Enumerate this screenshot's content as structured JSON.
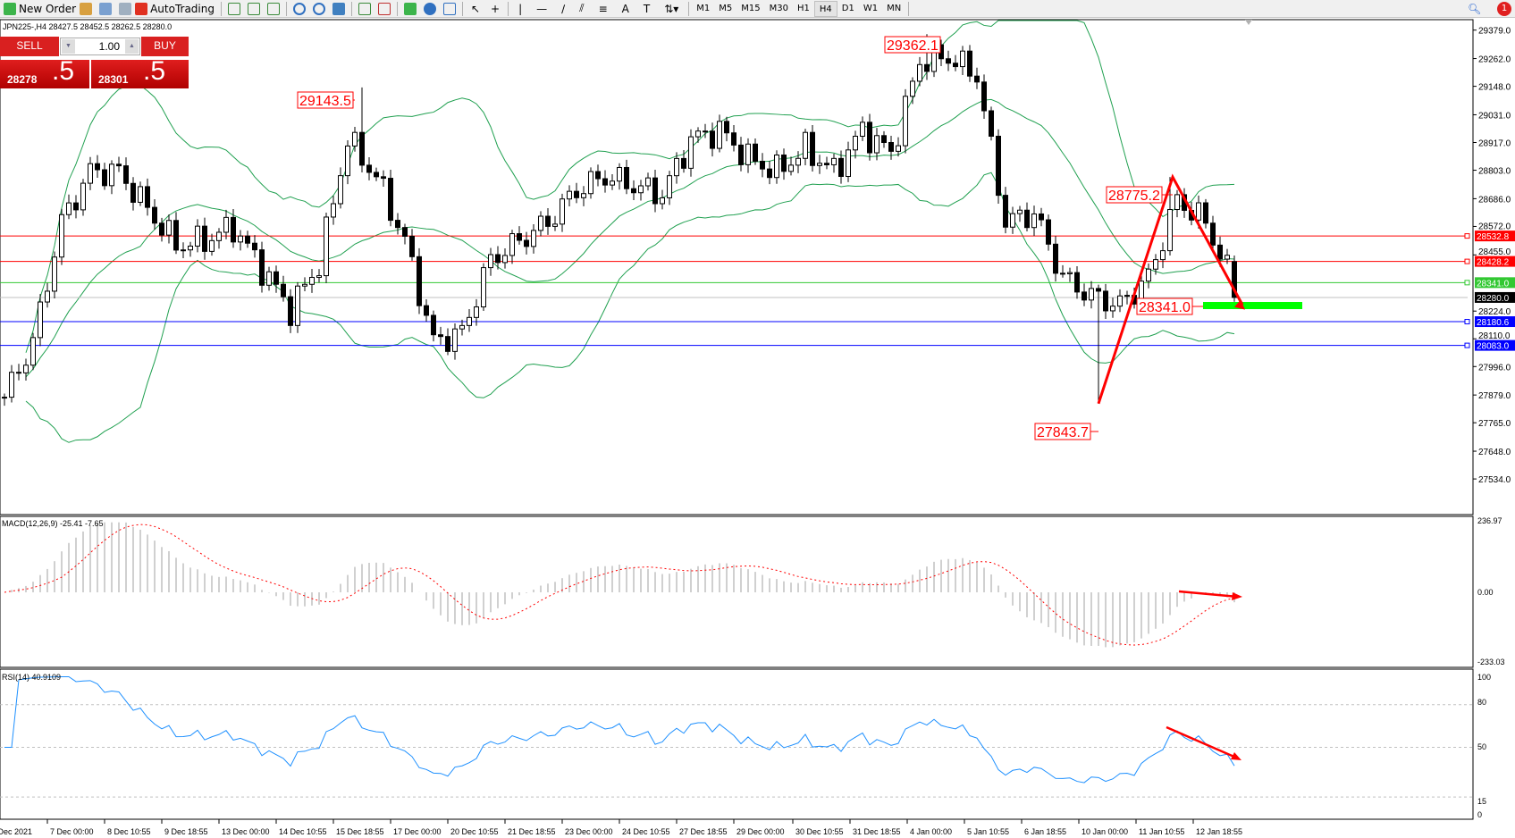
{
  "toolbar": {
    "new_order": "New Order",
    "autotrading": "AutoTrading",
    "timeframes": [
      "M1",
      "M5",
      "M15",
      "M30",
      "H1",
      "H4",
      "D1",
      "W1",
      "MN"
    ],
    "active_timeframe": "H4",
    "notification_count": "1"
  },
  "chart_title": "JPN225-,H4  28427.5 28452.5 28262.5 28280.0",
  "trade_panel": {
    "sell_label": "SELL",
    "buy_label": "BUY",
    "lot": "1.00",
    "sell_small": "28278",
    "sell_big": ".5",
    "buy_small": "28301",
    "buy_big": ".5",
    "color": "#d92020"
  },
  "price_axis": {
    "ticks": [
      "29379.0",
      "29262.0",
      "29148.0",
      "29031.0",
      "28917.0",
      "28803.0",
      "28686.0",
      "28572.0",
      "28455.0",
      "28224.0",
      "28110.0",
      "27996.0",
      "27879.0",
      "27765.0",
      "27648.0",
      "27534.0"
    ]
  },
  "levels": [
    {
      "price": "28532.8",
      "color": "#ff0000"
    },
    {
      "price": "28428.2",
      "color": "#ff0000"
    },
    {
      "price": "28341.0",
      "color": "#32c832"
    },
    {
      "price": "28280.0",
      "color": "#000000",
      "line": "#c0c0c0"
    },
    {
      "price": "28180.6",
      "color": "#0000ff"
    },
    {
      "price": "28083.0",
      "color": "#0000ff"
    }
  ],
  "annotations": [
    "29362.1",
    "29143.5",
    "28775.2",
    "27843.7",
    "28341.0"
  ],
  "macd": {
    "label": "MACD(12,26,9) -25.41 -7.65",
    "axis": [
      "236.97",
      "0.00",
      "-233.03"
    ]
  },
  "rsi": {
    "label": "RSI(14) 40.9109",
    "axis": [
      "100",
      "80",
      "50",
      "15",
      "0"
    ]
  },
  "time_axis": [
    "6 Dec 2021",
    "7 Dec 00:00",
    "8 Dec 10:55",
    "9 Dec 18:55",
    "13 Dec 00:00",
    "14 Dec 10:55",
    "15 Dec 18:55",
    "17 Dec 00:00",
    "20 Dec 10:55",
    "21 Dec 18:55",
    "23 Dec 00:00",
    "24 Dec 10:55",
    "27 Dec 18:55",
    "29 Dec 00:00",
    "30 Dec 10:55",
    "31 Dec 18:55",
    "4 Jan 00:00",
    "5 Jan 10:55",
    "6 Jan 18:55",
    "10 Jan 00:00",
    "11 Jan 10:55",
    "12 Jan 18:55"
  ],
  "chart_data": {
    "type": "candlestick",
    "symbol": "JPN225-",
    "timeframe": "H4",
    "ylim": [
      27534,
      29379
    ],
    "close_path": [
      27870,
      28097,
      28590,
      28797,
      28797,
      28645,
      28494,
      28513,
      28570,
      28400,
      28230,
      28419,
      28929,
      28778,
      28513,
      28097,
      28135,
      28437,
      28513,
      28589,
      28721,
      28778,
      28740,
      28702,
      28929,
      28967,
      28853,
      28797,
      28891,
      28797,
      28967,
      28872,
      29250,
      29269,
      29194,
      28589,
      28627,
      28362,
      28286,
      28248,
      28362,
      28683,
      28589,
      28324,
      28280
    ],
    "indicators": [
      "Bollinger Bands",
      "MACD(12,26,9)",
      "RSI(14)"
    ],
    "colors": {
      "bands": "#20a050",
      "macd_hist": "#c0c0c0",
      "macd_signal": "#ff0000",
      "rsi": "#1e90ff",
      "trend": "#ff0000",
      "zone": "#00ff00"
    }
  }
}
